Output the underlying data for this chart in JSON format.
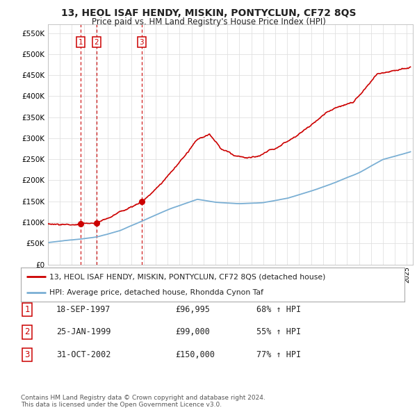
{
  "title": "13, HEOL ISAF HENDY, MISKIN, PONTYCLUN, CF72 8QS",
  "subtitle": "Price paid vs. HM Land Registry's House Price Index (HPI)",
  "y_ticks": [
    0,
    50000,
    100000,
    150000,
    200000,
    250000,
    300000,
    350000,
    400000,
    450000,
    500000,
    550000
  ],
  "y_tick_labels": [
    "£0",
    "£50K",
    "£100K",
    "£150K",
    "£200K",
    "£250K",
    "£300K",
    "£350K",
    "£400K",
    "£450K",
    "£500K",
    "£550K"
  ],
  "sales": [
    {
      "label": "1",
      "date_decimal": 1997.72,
      "price": 96995
    },
    {
      "label": "2",
      "date_decimal": 1999.07,
      "price": 99000
    },
    {
      "label": "3",
      "date_decimal": 2002.83,
      "price": 150000
    }
  ],
  "sale_color": "#cc0000",
  "hpi_color": "#7aafd4",
  "legend_red_label": "13, HEOL ISAF HENDY, MISKIN, PONTYCLUN, CF72 8QS (detached house)",
  "legend_blue_label": "HPI: Average price, detached house, Rhondda Cynon Taf",
  "table_rows": [
    {
      "num": "1",
      "date": "18-SEP-1997",
      "price": "£96,995",
      "change": "68% ↑ HPI"
    },
    {
      "num": "2",
      "date": "25-JAN-1999",
      "price": "£99,000",
      "change": "55% ↑ HPI"
    },
    {
      "num": "3",
      "date": "31-OCT-2002",
      "price": "£150,000",
      "change": "77% ↑ HPI"
    }
  ],
  "footnote": "Contains HM Land Registry data © Crown copyright and database right 2024.\nThis data is licensed under the Open Government Licence v3.0.",
  "background_color": "#ffffff",
  "grid_color": "#e0e0e0",
  "vline_color": "#cc0000"
}
